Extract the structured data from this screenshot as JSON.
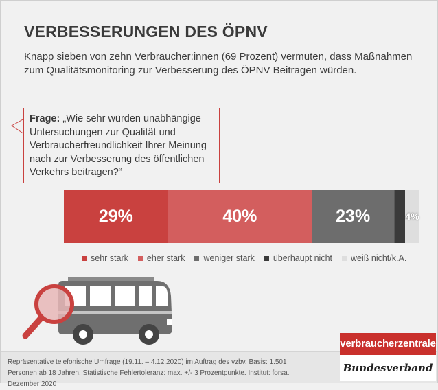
{
  "header": {
    "title": "VERBESSERUNGEN DES ÖPNV",
    "subtitle": "Knapp sieben von zehn Verbraucher:innen (69 Prozent) vermuten, dass Maßnahmen zum Qualitätsmonitoring zur Verbesserung des ÖPNV Beitragen würden."
  },
  "question": {
    "label": "Frage:",
    "text": "„Wie sehr würden unabhängige Untersuchungen zur Qualität und Verbraucherfreundlichkeit Ihrer Meinung nach zur Verbesserung des öffentlichen Verkehrs beitragen?“"
  },
  "chart_data": {
    "type": "bar",
    "orientation": "horizontal-stacked",
    "series": [
      {
        "name": "sehr stark",
        "value": 29,
        "label": "29%",
        "color": "#c9413f"
      },
      {
        "name": "eher stark",
        "value": 40,
        "label": "40%",
        "color": "#d35e5e"
      },
      {
        "name": "weniger stark",
        "value": 23,
        "label": "23%",
        "color": "#6d6d6d"
      },
      {
        "name": "überhaupt nicht",
        "value": 3,
        "label": "",
        "color": "#3a3a3a"
      },
      {
        "name": "weiß nicht/k.A.",
        "value": 4,
        "label": "4%",
        "color": "#dedede"
      }
    ],
    "legend_position": "bottom"
  },
  "footer": {
    "note": "Repräsentative telefonische Umfrage (19.11. – 4.12.2020) im Auftrag des vzbv. Basis: 1.501 Personen ab 18 Jahren. Statistische Fehlertoleranz: max. +/- 3 Prozentpunkte. Institut: forsa. | Dezember 2020"
  },
  "logo": {
    "line1": "verbraucherzentrale",
    "line2": "Bundesverband"
  },
  "icons": {
    "illustration": "bus-with-magnifier-icon"
  }
}
